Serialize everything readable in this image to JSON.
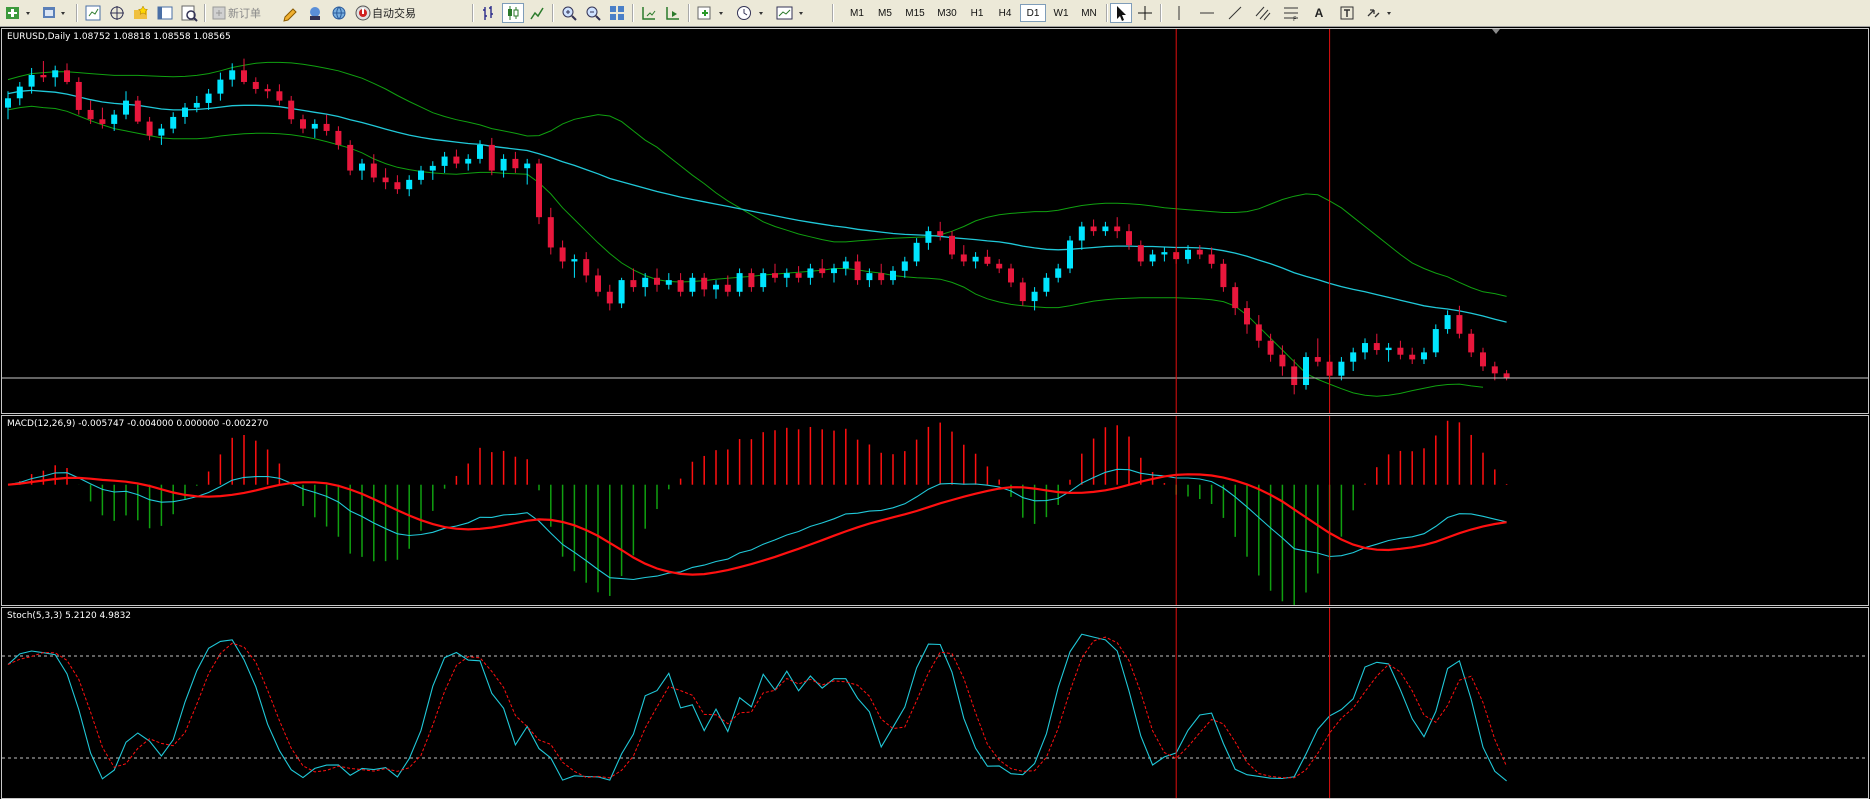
{
  "toolbar": {
    "new_order_label": "新订单",
    "auto_trade_label": "自动交易",
    "timeframes": [
      "M1",
      "M5",
      "M15",
      "M30",
      "H1",
      "H4",
      "D1",
      "W1",
      "MN"
    ],
    "active_timeframe": "D1",
    "text_tool_label": "A"
  },
  "colors": {
    "bull": "#00e5ff",
    "bear": "#e8173c",
    "bands": "#10a010",
    "ma": "#20c8d8",
    "signal": "#ff1010",
    "grid_dash": "#c0c0c0",
    "vline": "#e01010",
    "toolbar_bg": "#ece9d8"
  },
  "main_chart": {
    "label": "EURUSD,Daily  1.08752 1.08818 1.08558 1.08565",
    "symbol": "EURUSD",
    "period": "Daily",
    "ohlc": [
      1.08752,
      1.08818,
      1.08558,
      1.08565
    ],
    "candles": [
      [
        1.1045,
        1.108,
        1.102,
        1.1065
      ],
      [
        1.1065,
        1.11,
        1.105,
        1.109
      ],
      [
        1.109,
        1.113,
        1.1075,
        1.1115
      ],
      [
        1.1115,
        1.1145,
        1.11,
        1.111
      ],
      [
        1.111,
        1.1135,
        1.109,
        1.1125
      ],
      [
        1.1125,
        1.114,
        1.1095,
        1.11
      ],
      [
        1.11,
        1.111,
        1.103,
        1.104
      ],
      [
        1.104,
        1.106,
        1.101,
        1.102
      ],
      [
        1.102,
        1.1045,
        1.1,
        1.101
      ],
      [
        1.101,
        1.104,
        1.0995,
        1.103
      ],
      [
        1.103,
        1.108,
        1.102,
        1.106
      ],
      [
        1.106,
        1.107,
        1.101,
        1.1015
      ],
      [
        1.1015,
        1.1025,
        1.0975,
        1.0985
      ],
      [
        1.0985,
        1.101,
        1.0965,
        1.1
      ],
      [
        1.1,
        1.1035,
        1.099,
        1.1025
      ],
      [
        1.1025,
        1.1055,
        1.101,
        1.1045
      ],
      [
        1.1045,
        1.107,
        1.1035,
        1.1055
      ],
      [
        1.1055,
        1.1085,
        1.104,
        1.1075
      ],
      [
        1.1075,
        1.112,
        1.106,
        1.1105
      ],
      [
        1.1105,
        1.114,
        1.109,
        1.1125
      ],
      [
        1.1125,
        1.115,
        1.1095,
        1.11
      ],
      [
        1.11,
        1.111,
        1.1075,
        1.1085
      ],
      [
        1.1085,
        1.1095,
        1.1065,
        1.108
      ],
      [
        1.108,
        1.1095,
        1.105,
        1.106
      ],
      [
        1.106,
        1.107,
        1.101,
        1.102
      ],
      [
        1.102,
        1.103,
        1.099,
        1.1
      ],
      [
        1.1,
        1.102,
        1.098,
        1.101
      ],
      [
        1.101,
        1.103,
        1.0985,
        1.0995
      ],
      [
        1.0995,
        1.1005,
        1.0955,
        1.0965
      ],
      [
        1.0965,
        1.0975,
        1.09,
        1.091
      ],
      [
        1.091,
        1.0935,
        1.089,
        1.0925
      ],
      [
        1.0925,
        1.0945,
        1.0885,
        1.0895
      ],
      [
        1.0895,
        1.0915,
        1.087,
        1.0885
      ],
      [
        1.0885,
        1.09,
        1.086,
        1.087
      ],
      [
        1.087,
        1.09,
        1.0855,
        1.089
      ],
      [
        1.089,
        1.092,
        1.088,
        1.091
      ],
      [
        1.091,
        1.093,
        1.089,
        1.092
      ],
      [
        1.092,
        1.095,
        1.0905,
        1.094
      ],
      [
        1.094,
        1.0955,
        1.0915,
        1.0925
      ],
      [
        1.0925,
        1.0945,
        1.091,
        1.0935
      ],
      [
        1.0935,
        1.0975,
        1.0925,
        1.0965
      ],
      [
        1.0965,
        1.098,
        1.09,
        1.091
      ],
      [
        1.091,
        1.0945,
        1.0895,
        1.0935
      ],
      [
        1.0935,
        1.095,
        1.0905,
        1.0915
      ],
      [
        1.0915,
        1.0935,
        1.088,
        1.0925
      ],
      [
        1.0925,
        1.0935,
        1.0795,
        1.081
      ],
      [
        1.081,
        1.083,
        1.073,
        1.0745
      ],
      [
        1.0745,
        1.076,
        1.07,
        1.0715
      ],
      [
        1.0715,
        1.073,
        1.068,
        1.072
      ],
      [
        1.072,
        1.0735,
        1.067,
        1.0685
      ],
      [
        1.0685,
        1.07,
        1.064,
        1.065
      ],
      [
        1.065,
        1.0665,
        1.061,
        1.0625
      ],
      [
        1.0625,
        1.068,
        1.0615,
        1.0675
      ],
      [
        1.0675,
        1.07,
        1.065,
        1.066
      ],
      [
        1.066,
        1.069,
        1.064,
        1.068
      ],
      [
        1.068,
        1.07,
        1.065,
        1.0665
      ],
      [
        1.0665,
        1.069,
        1.0655,
        1.0675
      ],
      [
        1.0675,
        1.069,
        1.064,
        1.065
      ],
      [
        1.065,
        1.069,
        1.064,
        1.068
      ],
      [
        1.068,
        1.069,
        1.064,
        1.0655
      ],
      [
        1.0655,
        1.0675,
        1.0635,
        1.0665
      ],
      [
        1.0665,
        1.0685,
        1.064,
        1.065
      ],
      [
        1.065,
        1.07,
        1.064,
        1.069
      ],
      [
        1.069,
        1.07,
        1.065,
        1.066
      ],
      [
        1.066,
        1.07,
        1.065,
        1.069
      ],
      [
        1.069,
        1.071,
        1.067,
        1.068
      ],
      [
        1.068,
        1.07,
        1.066,
        1.069
      ],
      [
        1.069,
        1.0705,
        1.067,
        1.068
      ],
      [
        1.068,
        1.071,
        1.0665,
        1.07
      ],
      [
        1.07,
        1.072,
        1.068,
        1.069
      ],
      [
        1.069,
        1.071,
        1.067,
        1.07
      ],
      [
        1.07,
        1.0725,
        1.0685,
        1.0715
      ],
      [
        1.0715,
        1.073,
        1.0665,
        1.0675
      ],
      [
        1.0675,
        1.07,
        1.066,
        1.069
      ],
      [
        1.069,
        1.071,
        1.0665,
        1.0675
      ],
      [
        1.0675,
        1.0705,
        1.0665,
        1.0695
      ],
      [
        1.0695,
        1.0725,
        1.068,
        1.0715
      ],
      [
        1.0715,
        1.0765,
        1.0705,
        1.0755
      ],
      [
        1.0755,
        1.079,
        1.074,
        1.078
      ],
      [
        1.078,
        1.08,
        1.076,
        1.077
      ],
      [
        1.077,
        1.078,
        1.072,
        1.073
      ],
      [
        1.073,
        1.075,
        1.0705,
        1.0715
      ],
      [
        1.0715,
        1.0735,
        1.07,
        1.0725
      ],
      [
        1.0725,
        1.074,
        1.0705,
        1.071
      ],
      [
        1.071,
        1.072,
        1.069,
        1.07
      ],
      [
        1.07,
        1.071,
        1.066,
        1.067
      ],
      [
        1.067,
        1.068,
        1.062,
        1.063
      ],
      [
        1.063,
        1.066,
        1.061,
        1.065
      ],
      [
        1.065,
        1.069,
        1.064,
        1.068
      ],
      [
        1.068,
        1.071,
        1.067,
        1.07
      ],
      [
        1.07,
        1.077,
        1.069,
        1.076
      ],
      [
        1.076,
        1.08,
        1.074,
        1.079
      ],
      [
        1.079,
        1.0805,
        1.077,
        1.078
      ],
      [
        1.078,
        1.08,
        1.077,
        1.079
      ],
      [
        1.079,
        1.081,
        1.0765,
        1.078
      ],
      [
        1.078,
        1.0795,
        1.074,
        1.075
      ],
      [
        1.075,
        1.076,
        1.0705,
        1.0715
      ],
      [
        1.0715,
        1.074,
        1.0705,
        1.073
      ],
      [
        1.073,
        1.0745,
        1.0715,
        1.0735
      ],
      [
        1.0735,
        1.0745,
        1.071,
        1.072
      ],
      [
        1.072,
        1.075,
        1.071,
        1.074
      ],
      [
        1.074,
        1.075,
        1.072,
        1.073
      ],
      [
        1.073,
        1.0745,
        1.07,
        1.071
      ],
      [
        1.071,
        1.072,
        1.065,
        1.066
      ],
      [
        1.066,
        1.067,
        1.06,
        1.0615
      ],
      [
        1.0615,
        1.063,
        1.056,
        1.058
      ],
      [
        1.058,
        1.06,
        1.053,
        1.0545
      ],
      [
        1.0545,
        1.056,
        1.05,
        1.0515
      ],
      [
        1.0515,
        1.0535,
        1.047,
        1.049
      ],
      [
        1.049,
        1.0505,
        1.043,
        1.045
      ],
      [
        1.045,
        1.052,
        1.044,
        1.051
      ],
      [
        1.051,
        1.055,
        1.049,
        1.05
      ],
      [
        1.05,
        1.0515,
        1.0455,
        1.047
      ],
      [
        1.047,
        1.051,
        1.046,
        1.05
      ],
      [
        1.05,
        1.053,
        1.048,
        1.052
      ],
      [
        1.052,
        1.055,
        1.0505,
        1.054
      ],
      [
        1.054,
        1.056,
        1.0515,
        1.0525
      ],
      [
        1.0525,
        1.054,
        1.05,
        1.053
      ],
      [
        1.053,
        1.0545,
        1.0505,
        1.0515
      ],
      [
        1.0515,
        1.053,
        1.0495,
        1.0505
      ],
      [
        1.0505,
        1.053,
        1.0495,
        1.052
      ],
      [
        1.052,
        1.058,
        1.051,
        1.057
      ],
      [
        1.057,
        1.061,
        1.056,
        1.06
      ],
      [
        1.06,
        1.062,
        1.055,
        1.056
      ],
      [
        1.056,
        1.057,
        1.051,
        1.052
      ],
      [
        1.052,
        1.053,
        1.048,
        1.049
      ],
      [
        1.049,
        1.05,
        1.046,
        1.0475
      ],
      [
        1.0475,
        1.0482,
        1.046,
        1.0465
      ]
    ],
    "ma": [
      1.1075,
      1.108,
      1.1082,
      1.108,
      1.1078,
      1.1074,
      1.1068,
      1.1062,
      1.1057,
      1.1054,
      1.1052,
      1.105,
      1.1046,
      1.1042,
      1.104,
      1.104,
      1.1041,
      1.1043,
      1.1046,
      1.1049,
      1.105,
      1.105,
      1.1049,
      1.1047,
      1.1043,
      1.1039,
      1.1035,
      1.1031,
      1.1026,
      1.1019,
      1.1013,
      1.1006,
      1.0999,
      1.0992,
      1.0986,
      1.0981,
      1.0977,
      1.0974,
      1.0971,
      1.0968,
      1.0966,
      1.0962,
      1.0959,
      1.0956,
      1.0953,
      1.0946,
      1.0938,
      1.0929,
      1.0921,
      1.0912,
      1.0903,
      1.0893,
      1.0886,
      1.0879,
      1.0872,
      1.0865,
      1.0859,
      1.0853,
      1.0848,
      1.0843,
      1.0838,
      1.0833,
      1.0828,
      1.0823,
      1.0818,
      1.0813,
      1.0808,
      1.0803,
      1.0799,
      1.0795,
      1.0791,
      1.0788,
      1.0784,
      1.0781,
      1.0778,
      1.0775,
      1.0773,
      1.0772,
      1.0771,
      1.0769,
      1.0766,
      1.0764,
      1.0762,
      1.0759,
      1.0757,
      1.0753,
      1.0748,
      1.0744,
      1.0741,
      1.074,
      1.0741,
      1.0743,
      1.0745,
      1.0747,
      1.0748,
      1.0748,
      1.0747,
      1.0747,
      1.0746,
      1.0745,
      1.0745,
      1.0744,
      1.0742,
      1.0738,
      1.0733,
      1.0726,
      1.0718,
      1.071,
      1.0701,
      1.0691,
      1.0683,
      1.0676,
      1.0668,
      1.0661,
      1.0655,
      1.065,
      1.0644,
      1.0638,
      1.0632,
      1.0626,
      1.062,
      1.0616,
      1.0613,
      1.0609,
      1.0604,
      1.0598,
      1.0591,
      1.0585
    ],
    "bb_upper": [
      1.1105,
      1.1112,
      1.1118,
      1.112,
      1.1122,
      1.1122,
      1.112,
      1.1118,
      1.1116,
      1.1114,
      1.1114,
      1.1114,
      1.1113,
      1.1112,
      1.1111,
      1.1112,
      1.1114,
      1.1118,
      1.1124,
      1.1131,
      1.1136,
      1.114,
      1.1142,
      1.1142,
      1.1141,
      1.1138,
      1.1134,
      1.1129,
      1.1124,
      1.1116,
      1.1108,
      1.1097,
      1.1085,
      1.1071,
      1.1058,
      1.1046,
      1.1034,
      1.1026,
      1.1019,
      1.1014,
      1.1008,
      1.1,
      1.0995,
      1.099,
      1.0984,
      1.0985,
      1.0995,
      1.101,
      1.102,
      1.1025,
      1.103,
      1.1027,
      1.1015,
      1.0995,
      1.0975,
      1.096,
      1.094,
      1.092,
      1.09,
      1.0882,
      1.0862,
      1.0845,
      1.083,
      1.0815,
      1.08,
      1.079,
      1.0782,
      1.0774,
      1.0768,
      1.0762,
      1.0757,
      1.0757,
      1.0759,
      1.0761,
      1.0763,
      1.0765,
      1.0766,
      1.0767,
      1.0768,
      1.0772,
      1.078,
      1.079,
      1.0802,
      1.081,
      1.0815,
      1.0818,
      1.082,
      1.0822,
      1.0822,
      1.0825,
      1.083,
      1.0835,
      1.0838,
      1.084,
      1.084,
      1.0839,
      1.0837,
      1.0834,
      1.083,
      1.0828,
      1.0826,
      1.0824,
      1.0822,
      1.082,
      1.082,
      1.0822,
      1.0828,
      1.0838,
      1.0848,
      1.0855,
      1.086,
      1.0858,
      1.0845,
      1.083,
      1.081,
      1.079,
      1.077,
      1.075,
      1.073,
      1.0712,
      1.07,
      1.069,
      1.0682,
      1.067,
      1.0659,
      1.065,
      1.0646,
      1.064
    ],
    "bb_lower": [
      1.104,
      1.1045,
      1.1048,
      1.1045,
      1.1043,
      1.1037,
      1.1027,
      1.1017,
      1.1008,
      1.1,
      1.0995,
      1.099,
      1.0985,
      1.098,
      1.0978,
      1.0978,
      1.0978,
      1.098,
      1.0984,
      1.0987,
      1.0989,
      1.099,
      1.099,
      1.0989,
      1.0987,
      1.0983,
      1.0978,
      1.0972,
      1.0965,
      1.0958,
      1.0948,
      1.0935,
      1.0925,
      1.0917,
      1.0912,
      1.0908,
      1.0905,
      1.0903,
      1.0902,
      1.0904,
      1.0906,
      1.0906,
      1.0904,
      1.0903,
      1.0902,
      1.0884,
      1.086,
      1.083,
      1.0805,
      1.078,
      1.0755,
      1.0732,
      1.0712,
      1.0697,
      1.0685,
      1.0676,
      1.0672,
      1.0671,
      1.0672,
      1.0674,
      1.0677,
      1.0679,
      1.0681,
      1.0683,
      1.0686,
      1.0688,
      1.069,
      1.0692,
      1.0694,
      1.0696,
      1.07,
      1.07,
      1.0697,
      1.0693,
      1.069,
      1.0685,
      1.0682,
      1.068,
      1.0679,
      1.0677,
      1.067,
      1.066,
      1.0645,
      1.0635,
      1.0628,
      1.0623,
      1.062,
      1.0618,
      1.0616,
      1.0616,
      1.062,
      1.0625,
      1.063,
      1.0633,
      1.0635,
      1.0636,
      1.0637,
      1.0637,
      1.0637,
      1.0637,
      1.0636,
      1.0635,
      1.0633,
      1.0629,
      1.0619,
      1.06,
      1.0575,
      1.055,
      1.0525,
      1.05,
      1.0475,
      1.0462,
      1.0452,
      1.0442,
      1.0433,
      1.0428,
      1.0426,
      1.0428,
      1.0432,
      1.0438,
      1.0443,
      1.0448,
      1.0451,
      1.0452,
      1.0448,
      1.0445
    ],
    "price_range": [
      1.042,
      1.1175
    ]
  },
  "macd_panel": {
    "label": "MACD(12,26,9) -0.005747 -0.004000 0.000000 -0.002270",
    "params": [
      12,
      26,
      9
    ],
    "values": [
      -0.005747,
      -0.004,
      0.0,
      -0.00227
    ],
    "range": [
      -0.0105,
      0.0048
    ]
  },
  "stoch_panel": {
    "label": "Stoch(5,3,3) 5.2120 4.9832",
    "params": [
      5,
      3,
      3
    ],
    "values": [
      5.212,
      4.9832
    ],
    "levels": [
      80,
      20
    ],
    "range": [
      0,
      100
    ]
  },
  "crosshair_bars": [
    99,
    112
  ]
}
